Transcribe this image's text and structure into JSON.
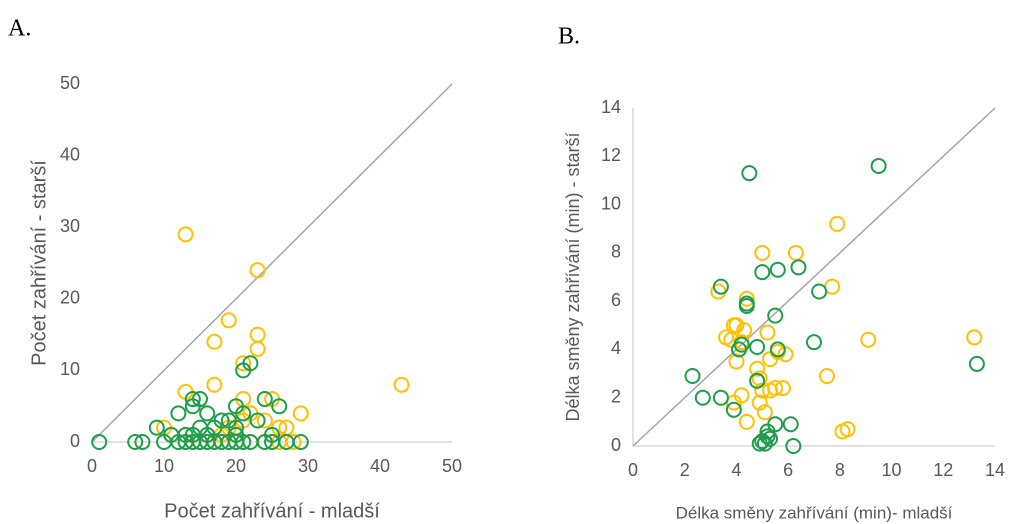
{
  "chart_data": [
    {
      "type": "scatter",
      "title": "A.",
      "x_label": "Počet zahřívání - mladší",
      "y_label": "Počet zahřívání - starší",
      "xlim": [
        0,
        50
      ],
      "ylim": [
        0,
        50
      ],
      "xticks": [
        0,
        10,
        20,
        30,
        40,
        50
      ],
      "yticks": [
        0,
        10,
        20,
        30,
        40,
        50
      ],
      "diagonal": true,
      "series": [
        {
          "color": "#FFC000",
          "x": [
            13,
            23,
            19,
            23,
            17,
            23,
            21,
            13,
            17,
            43,
            21,
            25,
            29,
            22,
            24,
            26,
            27,
            10,
            11,
            16,
            18,
            20,
            19,
            17,
            20,
            22,
            24,
            26,
            28,
            15,
            13,
            21
          ],
          "values": [
            29,
            24,
            17,
            15,
            14,
            13,
            11,
            7,
            8,
            8,
            6,
            6,
            4,
            4,
            3,
            2,
            2,
            2,
            1,
            1,
            1,
            1,
            2,
            0,
            0,
            0,
            0,
            0,
            0,
            0,
            0,
            3
          ]
        },
        {
          "color": "#1E9E4A",
          "x": [
            1,
            6,
            7,
            10,
            12,
            13,
            14,
            15,
            16,
            17,
            18,
            19,
            20,
            21,
            22,
            24,
            25,
            27,
            29,
            22,
            21,
            24,
            26,
            14,
            15,
            14,
            12,
            16,
            20,
            21,
            9,
            11,
            13,
            15,
            16,
            17,
            18,
            19,
            20,
            23,
            25,
            14,
            20
          ],
          "values": [
            0,
            0,
            0,
            0,
            0,
            0,
            0,
            0,
            0,
            0,
            0,
            0,
            0,
            0,
            0,
            0,
            0,
            0,
            0,
            11,
            10,
            6,
            5,
            6,
            6,
            5,
            4,
            4,
            5,
            4,
            2,
            1,
            1,
            2,
            1,
            2,
            3,
            3,
            2,
            3,
            1,
            1,
            1
          ]
        }
      ]
    },
    {
      "type": "scatter",
      "title": "B.",
      "x_label": "Délka směny zahřívání (min)- mladší",
      "y_label": "Délka směny zahřívání (min) - starší",
      "xlim": [
        0,
        14
      ],
      "ylim": [
        0,
        14
      ],
      "xticks": [
        0,
        2,
        4,
        6,
        8,
        10,
        12,
        14
      ],
      "yticks": [
        0,
        2,
        4,
        6,
        8,
        10,
        12,
        14
      ],
      "diagonal": true,
      "series": [
        {
          "color": "#FFC000",
          "x": [
            3.3,
            4.4,
            5.0,
            6.3,
            7.9,
            7.7,
            3.6,
            3.8,
            3.9,
            4.0,
            4.2,
            4.3,
            5.2,
            5.6,
            5.9,
            4.0,
            5.3,
            4.8,
            4.9,
            4.2,
            4.9,
            5.1,
            5.3,
            5.5,
            5.8,
            4.4,
            7.5,
            9.1,
            13.2,
            8.1,
            8.3,
            5.0,
            3.9
          ],
          "values": [
            6.4,
            6.1,
            8.0,
            8.0,
            9.2,
            6.6,
            4.5,
            4.4,
            5.0,
            5.0,
            4.3,
            4.8,
            4.7,
            3.9,
            3.8,
            3.5,
            3.6,
            3.2,
            2.8,
            2.1,
            1.8,
            1.4,
            2.3,
            2.4,
            2.4,
            1.0,
            2.9,
            4.4,
            4.5,
            0.6,
            0.7,
            2.3,
            1.8
          ]
        },
        {
          "color": "#1E9E4A",
          "x": [
            9.5,
            4.5,
            3.4,
            4.4,
            4.4,
            5.0,
            5.6,
            6.4,
            7.2,
            5.5,
            4.2,
            4.1,
            4.8,
            5.6,
            7.0,
            13.3,
            2.3,
            4.8,
            2.7,
            3.4,
            3.9,
            5.2,
            5.5,
            6.1,
            5.0,
            5.2,
            5.3,
            4.9,
            6.2,
            5.1
          ],
          "values": [
            11.6,
            11.3,
            6.6,
            5.9,
            5.8,
            7.2,
            7.3,
            7.4,
            6.4,
            5.4,
            4.2,
            4.0,
            4.1,
            4.0,
            4.3,
            3.4,
            2.9,
            2.7,
            2.0,
            2.0,
            1.5,
            0.6,
            0.9,
            0.9,
            0.2,
            0.4,
            0.3,
            0.1,
            0.0,
            0.1
          ]
        }
      ]
    }
  ]
}
